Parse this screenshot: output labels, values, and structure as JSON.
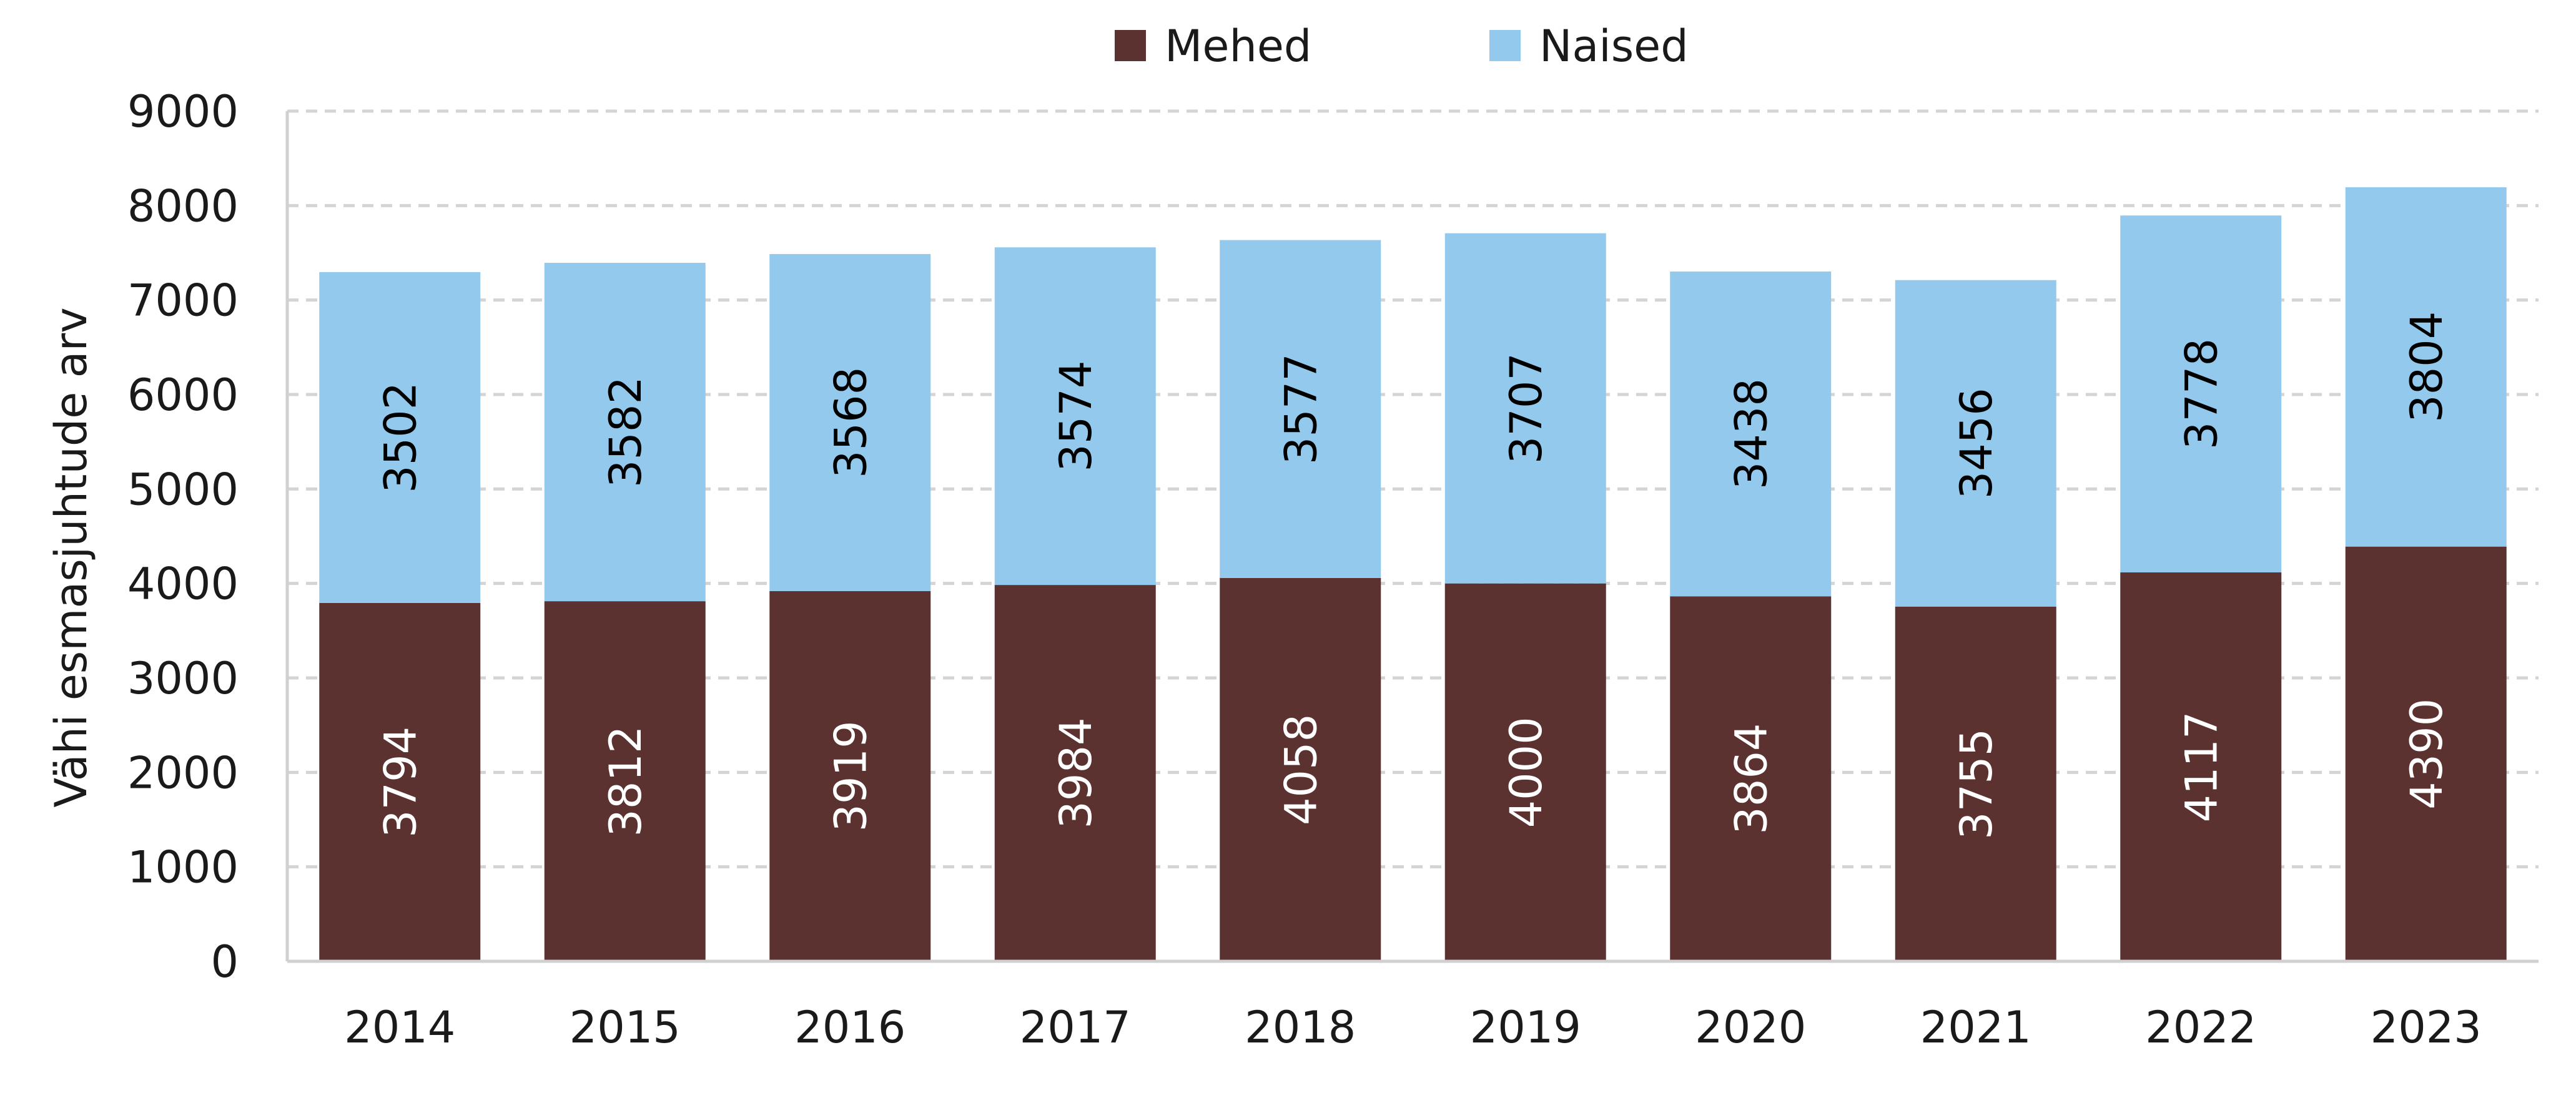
{
  "chart_data": {
    "type": "bar",
    "stacked": true,
    "title": "",
    "xlabel": "",
    "ylabel": "Vähi esmasjuhtude arv",
    "categories": [
      "2014",
      "2015",
      "2016",
      "2017",
      "2018",
      "2019",
      "2020",
      "2021",
      "2022",
      "2023"
    ],
    "series": [
      {
        "name": "Mehed",
        "color": "#5c3230",
        "label_color": "#ffffff",
        "values": [
          3794,
          3812,
          3919,
          3984,
          4058,
          4000,
          3864,
          3755,
          4117,
          4390
        ]
      },
      {
        "name": "Naised",
        "color": "#93c9ec",
        "label_color": "#000000",
        "values": [
          3502,
          3582,
          3568,
          3574,
          3577,
          3707,
          3438,
          3456,
          3778,
          3804
        ]
      }
    ],
    "ylim": [
      0,
      9000
    ],
    "yticks": [
      0,
      1000,
      2000,
      3000,
      4000,
      5000,
      6000,
      7000,
      8000,
      9000
    ],
    "grid": true,
    "legend_position": "top-center",
    "data_labels": true,
    "data_label_orientation": "vertical"
  }
}
